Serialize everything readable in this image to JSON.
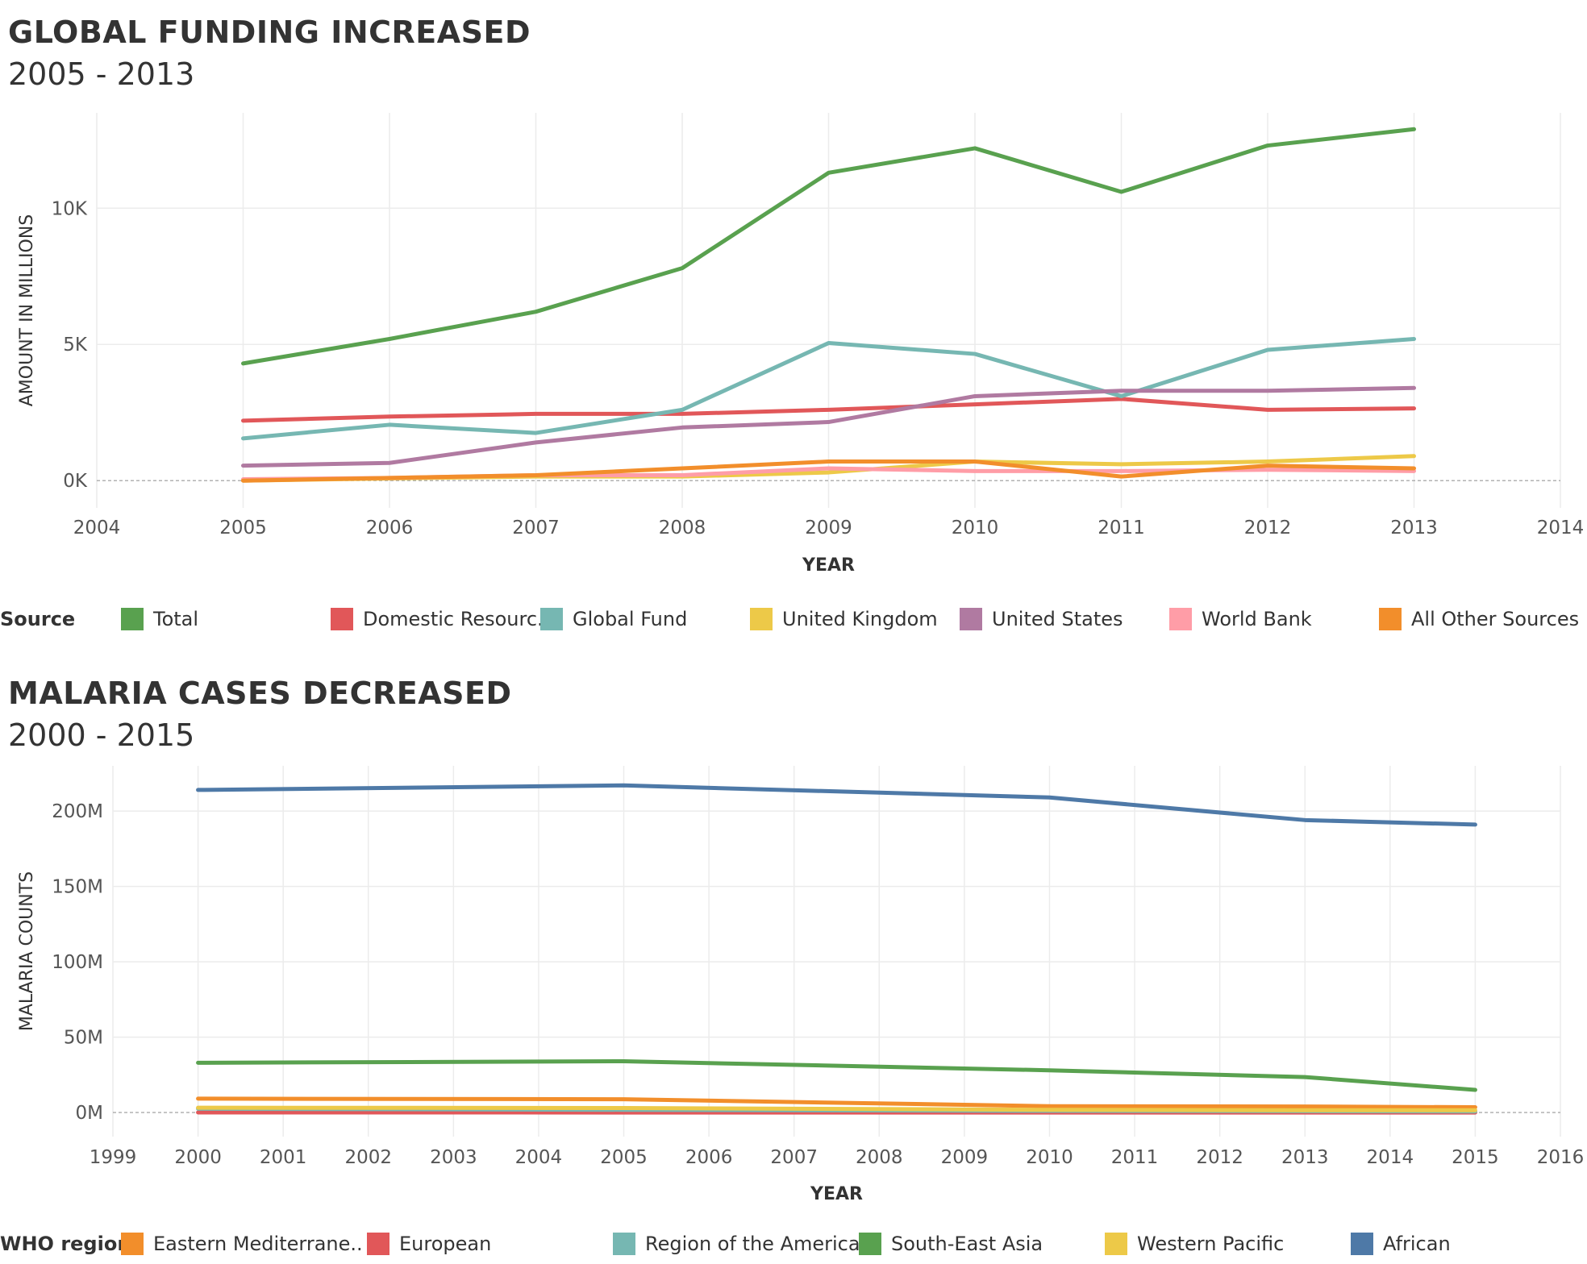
{
  "chart_data": [
    {
      "type": "line",
      "title": "GLOBAL FUNDING INCREASED",
      "subtitle": "2005 -  2013",
      "xlabel": "YEAR",
      "ylabel": "AMOUNT IN MILLIONS",
      "x_ticks": [
        "2004",
        "2005",
        "2006",
        "2007",
        "2008",
        "2009",
        "2010",
        "2011",
        "2012",
        "2013",
        "2014"
      ],
      "y_ticks": [
        "0K",
        "5K",
        "10K"
      ],
      "xlim": [
        2004,
        2014
      ],
      "ylim": [
        -1000,
        13500
      ],
      "grid": true,
      "legend_title": "Source",
      "legend_placement": "bottom",
      "x": [
        2005,
        2006,
        2007,
        2008,
        2009,
        2010,
        2011,
        2012,
        2013
      ],
      "series": [
        {
          "name": "Total",
          "color": "#59A14F",
          "values": [
            4300,
            5200,
            6200,
            7800,
            11300,
            12200,
            10600,
            12300,
            12900
          ]
        },
        {
          "name": "Domestic Resourc..",
          "color": "#E15759",
          "values": [
            2200,
            2350,
            2450,
            2450,
            2600,
            2800,
            3000,
            2600,
            2650
          ]
        },
        {
          "name": "Global Fund",
          "color": "#76B7B2",
          "values": [
            1550,
            2050,
            1750,
            2600,
            5050,
            4650,
            3100,
            4800,
            5200
          ]
        },
        {
          "name": "United Kingdom",
          "color": "#EDC948",
          "values": [
            0,
            80,
            150,
            150,
            300,
            700,
            600,
            700,
            900
          ]
        },
        {
          "name": "United States",
          "color": "#B07AA1",
          "values": [
            550,
            650,
            1400,
            1950,
            2150,
            3100,
            3300,
            3300,
            3400
          ]
        },
        {
          "name": "World Bank",
          "color": "#FF9DA7",
          "values": [
            50,
            100,
            200,
            200,
            450,
            350,
            350,
            400,
            350
          ]
        },
        {
          "name": "All Other Sources",
          "color": "#F28E2B",
          "values": [
            0,
            100,
            200,
            450,
            700,
            700,
            150,
            550,
            450
          ]
        }
      ]
    },
    {
      "type": "line",
      "title": "MALARIA CASES DECREASED",
      "subtitle": "2000 - 2015",
      "xlabel": "YEAR",
      "ylabel": "MALARIA COUNTS",
      "x_ticks": [
        "1999",
        "2000",
        "2001",
        "2002",
        "2003",
        "2004",
        "2005",
        "2006",
        "2007",
        "2008",
        "2009",
        "2010",
        "2011",
        "2012",
        "2013",
        "2014",
        "2015",
        "2016"
      ],
      "y_ticks": [
        "0M",
        "50M",
        "100M",
        "150M",
        "200M"
      ],
      "xlim": [
        1999,
        2016
      ],
      "ylim": [
        -16000000,
        230000000
      ],
      "grid": true,
      "legend_title": "WHO region",
      "legend_placement": "bottom",
      "x": [
        2000,
        2005,
        2010,
        2013,
        2015
      ],
      "series": [
        {
          "name": "Eastern Mediterrane..",
          "color": "#F28E2B",
          "values": [
            9200000,
            8800000,
            4200000,
            4000000,
            3500000
          ]
        },
        {
          "name": "European",
          "color": "#E15759",
          "values": [
            50000,
            5000,
            200,
            0,
            0
          ]
        },
        {
          "name": "Region of the Americas",
          "color": "#76B7B2",
          "values": [
            2500000,
            1800000,
            1100000,
            900000,
            700000
          ]
        },
        {
          "name": "South-East Asia",
          "color": "#59A14F",
          "values": [
            33000000,
            34000000,
            28000000,
            23500000,
            15000000
          ]
        },
        {
          "name": "Western Pacific",
          "color": "#EDC948",
          "values": [
            3200000,
            3000000,
            1800000,
            1500000,
            1500000
          ]
        },
        {
          "name": "African",
          "color": "#4E79A7",
          "values": [
            214000000,
            217000000,
            209000000,
            194000000,
            191000000
          ]
        }
      ]
    }
  ]
}
